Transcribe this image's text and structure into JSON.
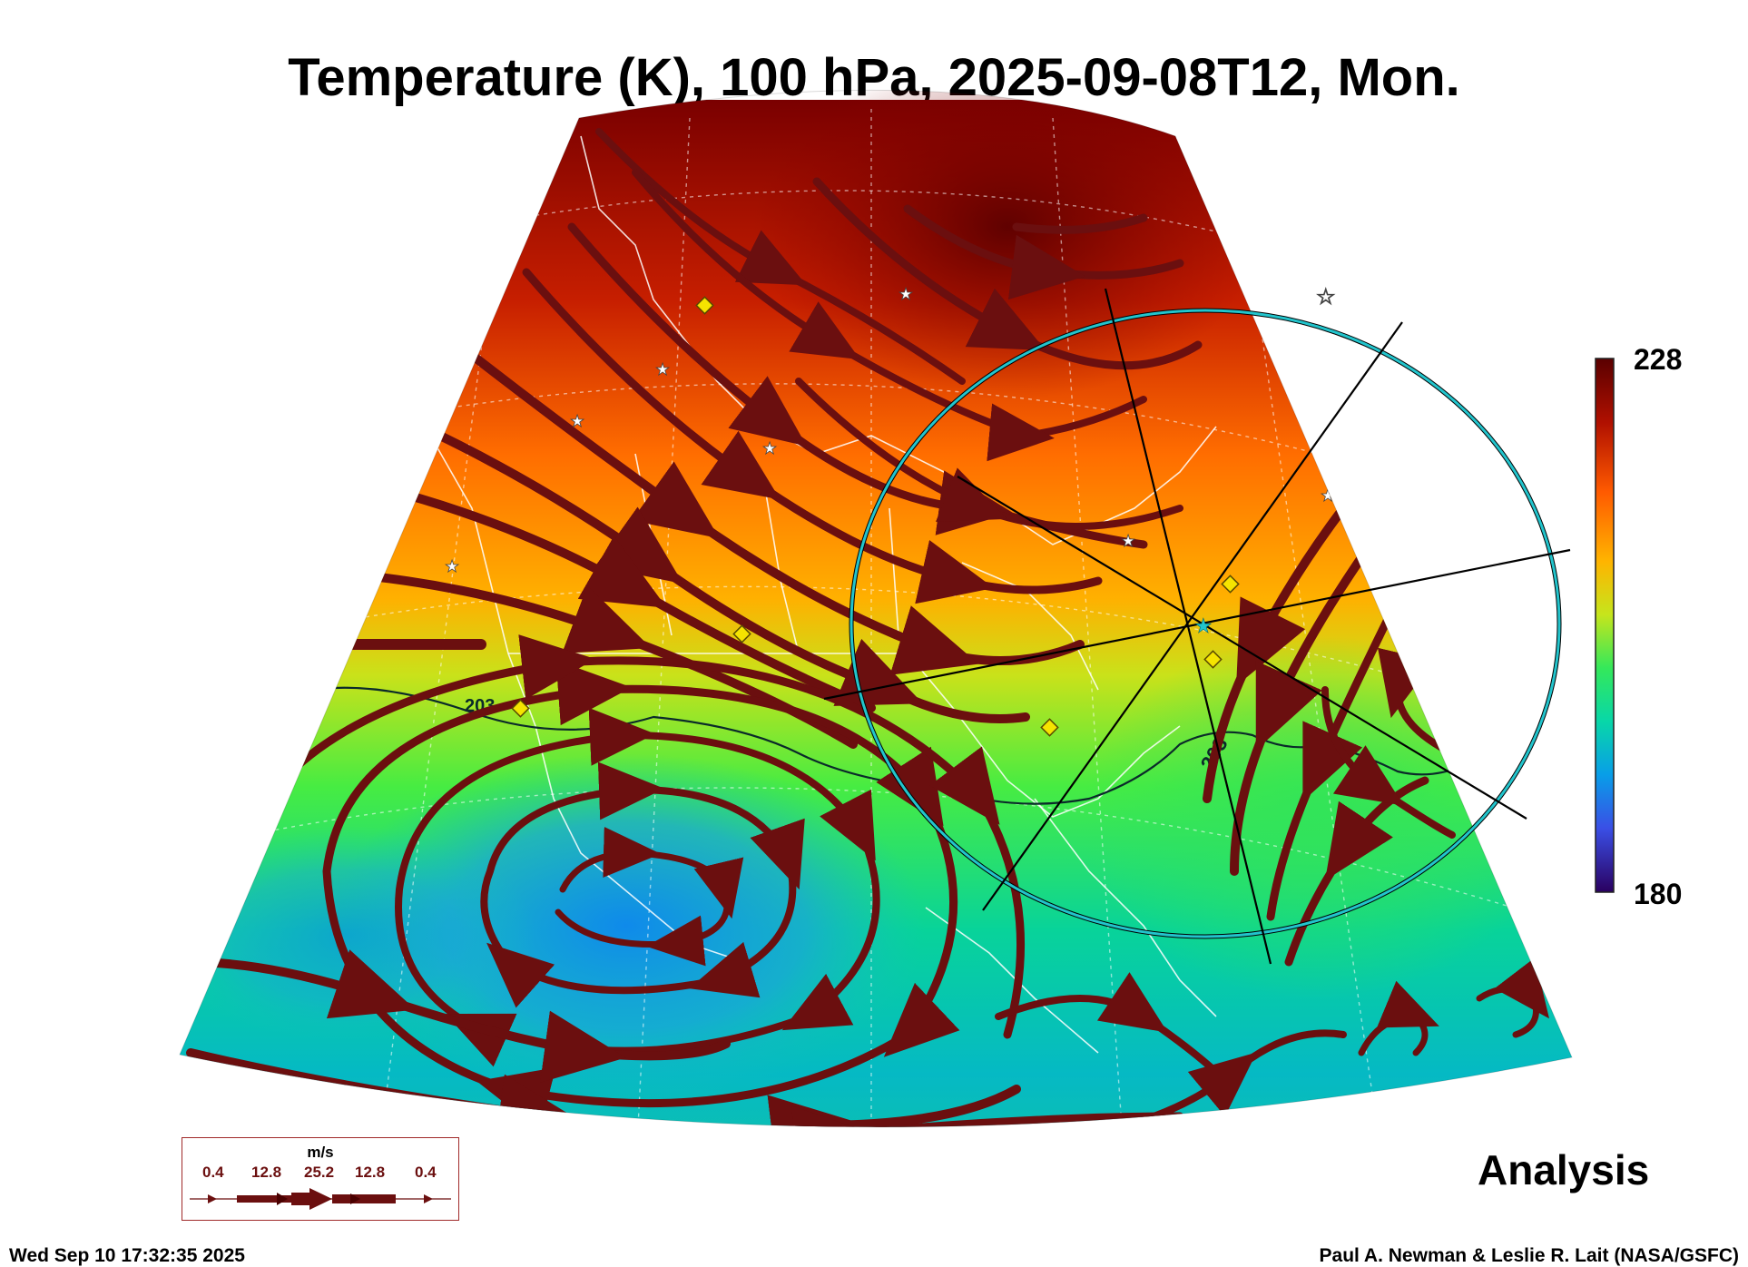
{
  "title": "Temperature (K), 100 hPa, 2025-09-08T12, Mon.",
  "colorbar": {
    "max_label": "228",
    "min_label": "180"
  },
  "contour_labels": [
    "203",
    "203"
  ],
  "analysis_label": "Analysis",
  "wind_legend": {
    "unit": "m/s",
    "values": [
      "0.4",
      "12.8",
      "25.2",
      "12.8",
      "0.4"
    ]
  },
  "footer": {
    "timestamp": "Wed Sep 10 17:32:35 2025",
    "credit": "Paul A. Newman & Leslie R. Lait (NASA/GSFC)"
  },
  "colors": {
    "streamline": "#6b0f0f",
    "range_ring": "#22c4cc",
    "station_marker": "#f5e400"
  }
}
